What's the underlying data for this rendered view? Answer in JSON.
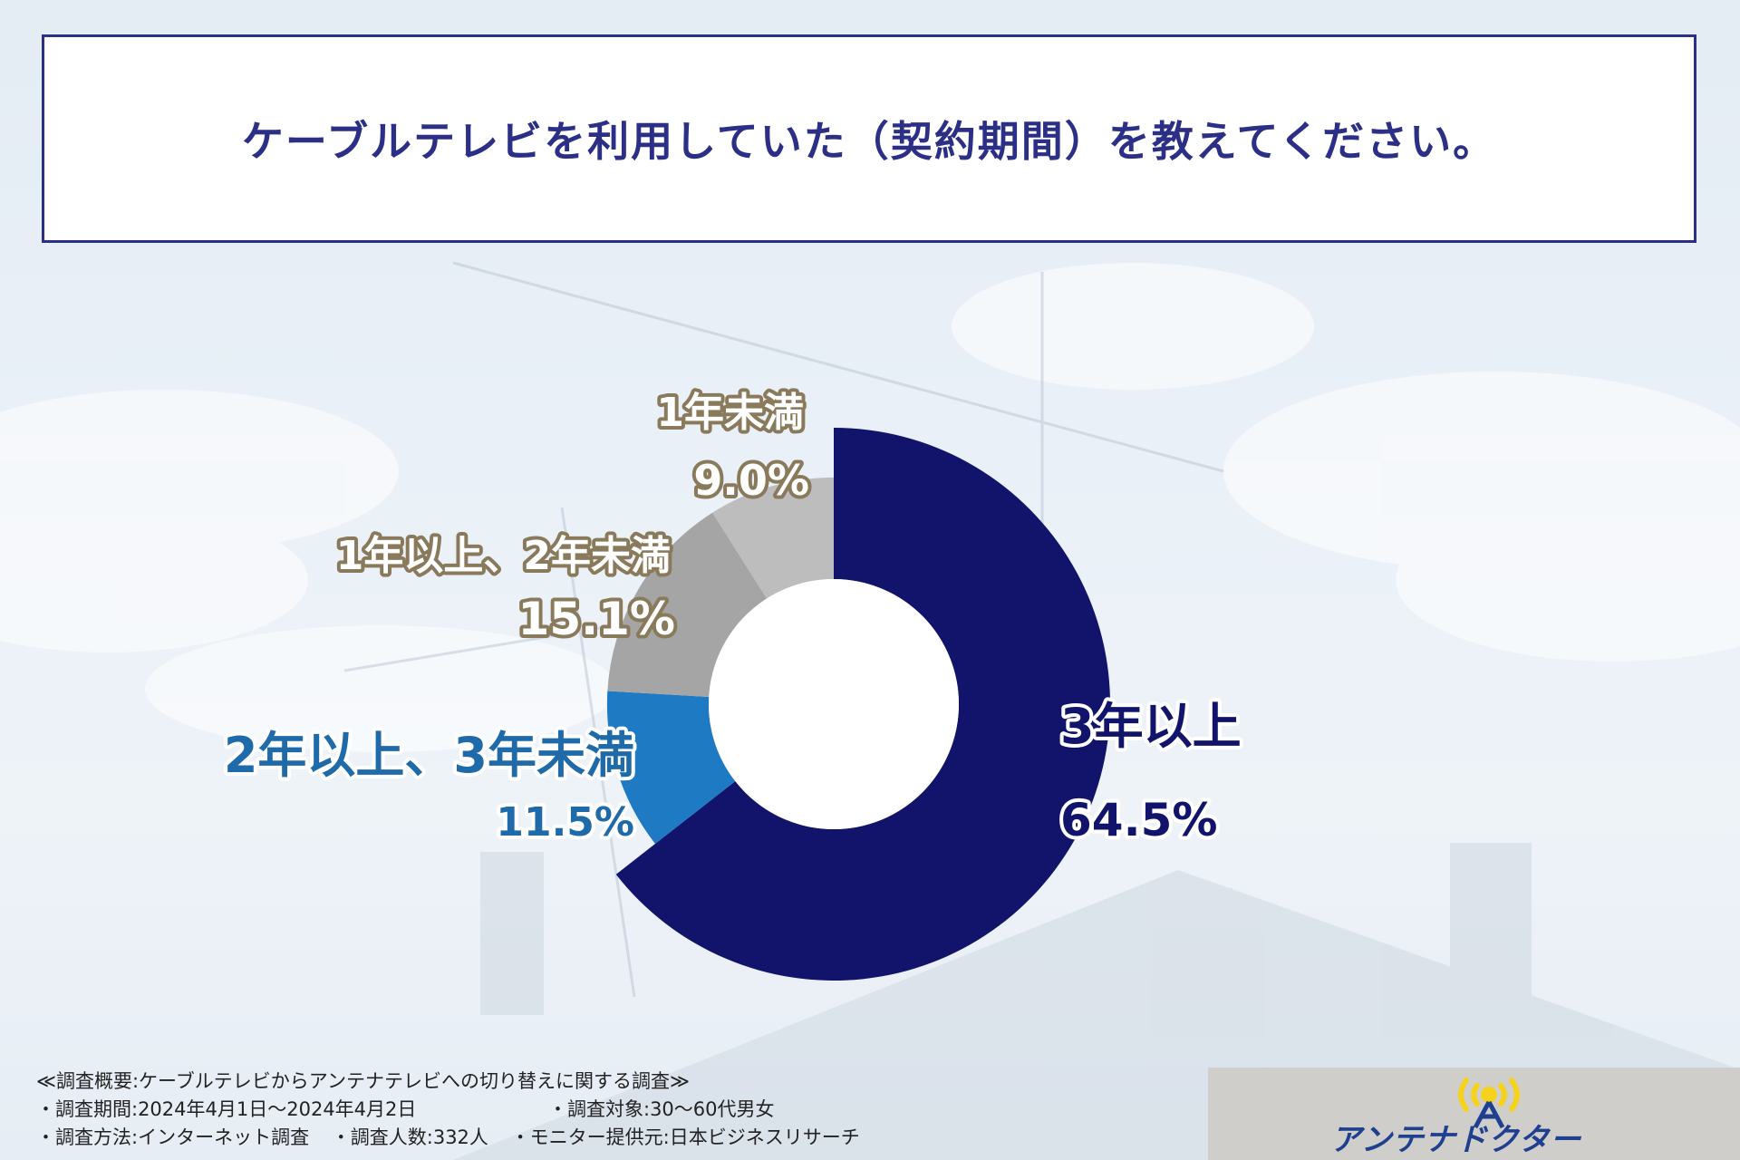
{
  "title": "ケーブルテレビを利用していた（契約期間）を教えてください。",
  "chart_data": {
    "type": "pie",
    "donut": true,
    "categories": [
      "3年以上",
      "2年以上、3年未満",
      "1年以上、2年未満",
      "1年未満"
    ],
    "values": [
      64.5,
      11.5,
      15.1,
      9.0
    ],
    "value_labels": [
      "64.5%",
      "11.5%",
      "15.1%",
      "9.0%"
    ],
    "colors": [
      "#11146a",
      "#1f7ac4",
      "#a5a5a5",
      "#bdbdbd"
    ],
    "label_colors": [
      "#11146a",
      "#1f6aa8",
      "#ffffff",
      "#ffffff"
    ],
    "label_stroke_colors": [
      "#ffffff",
      "#ffffff",
      "#8a7a5c",
      "#8a7a5c"
    ]
  },
  "notes": {
    "heading": "≪調査概要:ケーブルテレビからアンテナテレビへの切り替えに関する調査≫",
    "period": "・調査期間:2024年4月1日～2024年4月2日",
    "target": "・調査対象:30～60代男女",
    "method": "・調査方法:インターネット調査",
    "count": "・調査人数:332人",
    "provider": "・モニター提供元:日本ビジネスリサーチ"
  },
  "logo": {
    "text": "アンテナドクター",
    "colors": {
      "accent": "#f5d21c",
      "text": "#1f3f8f"
    }
  }
}
